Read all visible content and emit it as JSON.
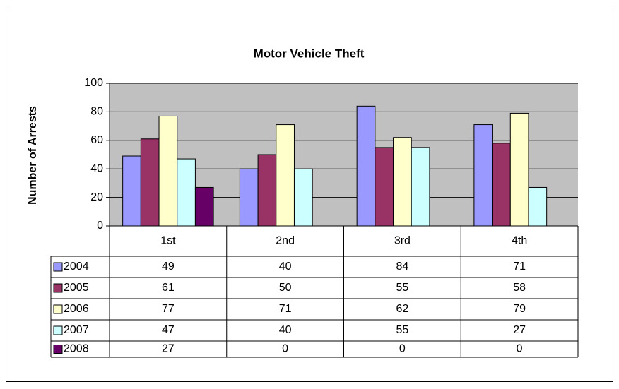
{
  "chart_data": {
    "type": "bar",
    "title": "Motor Vehicle Theft",
    "y_label": "Number of Arrests",
    "categories": [
      "1st",
      "2nd",
      "3rd",
      "4th"
    ],
    "series": [
      {
        "name": "2004",
        "color": "#9999ff",
        "values": [
          49,
          40,
          84,
          71
        ]
      },
      {
        "name": "2005",
        "color": "#993366",
        "values": [
          61,
          50,
          55,
          58
        ]
      },
      {
        "name": "2006",
        "color": "#ffffcc",
        "values": [
          77,
          71,
          62,
          79
        ]
      },
      {
        "name": "2007",
        "color": "#ccffff",
        "values": [
          47,
          40,
          55,
          27
        ]
      },
      {
        "name": "2008",
        "color": "#660066",
        "values": [
          27,
          0,
          0,
          0
        ]
      }
    ],
    "ylim": [
      0,
      100
    ],
    "yticks": [
      0,
      20,
      40,
      60,
      80,
      100
    ],
    "grid": true,
    "plot_background": "#c0c0c0"
  }
}
